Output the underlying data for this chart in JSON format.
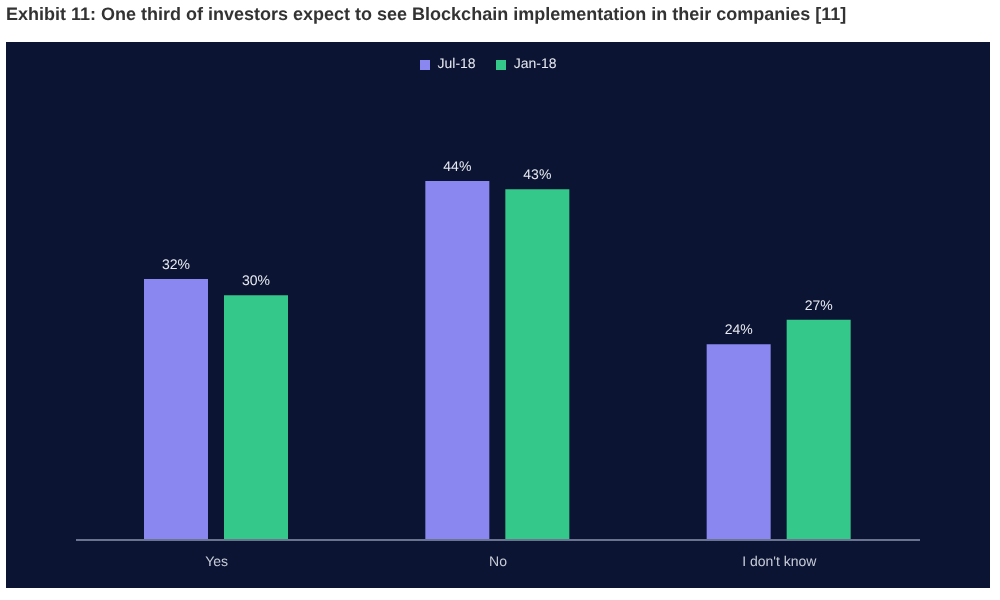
{
  "chart_data": {
    "type": "bar",
    "title": "Exhibit 11: One third of investors expect to see Blockchain implementation in their companies [11]",
    "categories": [
      "Yes",
      "No",
      "I don't know"
    ],
    "series": [
      {
        "name": "Jul-18",
        "color": "#8b87f0",
        "values": [
          32,
          44,
          24
        ],
        "value_labels": [
          "32%",
          "44%",
          "24%"
        ]
      },
      {
        "name": "Jan-18",
        "color": "#34c98a",
        "values": [
          30,
          43,
          27
        ],
        "value_labels": [
          "30%",
          "43%",
          "27%"
        ]
      }
    ],
    "legend": "top",
    "grid": false
  }
}
